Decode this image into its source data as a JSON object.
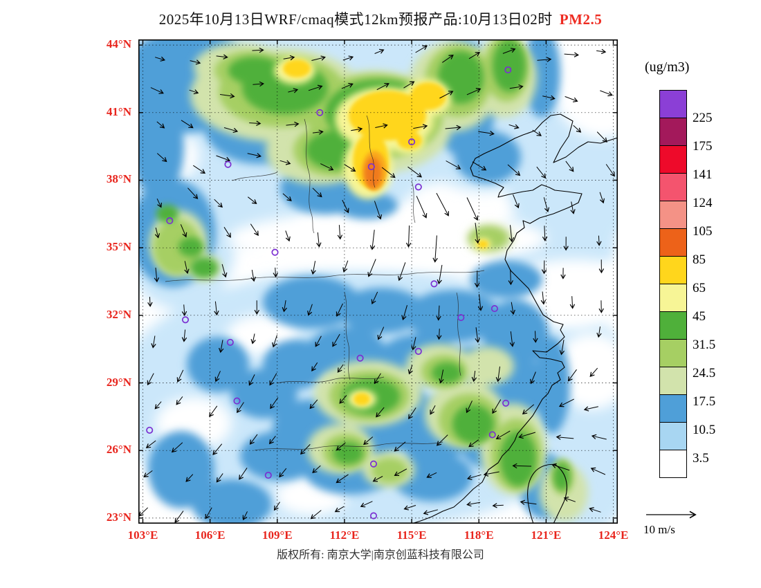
{
  "title": {
    "prefix": "2025年10月13日WRF/cmaq模式12km预报产品:10月13日02时",
    "pollutant": "PM2.5"
  },
  "axes": {
    "lat": [
      {
        "label": "44°N",
        "deg": 44
      },
      {
        "label": "41°N",
        "deg": 41
      },
      {
        "label": "38°N",
        "deg": 38
      },
      {
        "label": "35°N",
        "deg": 35
      },
      {
        "label": "32°N",
        "deg": 32
      },
      {
        "label": "29°N",
        "deg": 29
      },
      {
        "label": "26°N",
        "deg": 26
      },
      {
        "label": "23°N",
        "deg": 23
      }
    ],
    "lon": [
      {
        "label": "103°E",
        "deg": 103
      },
      {
        "label": "106°E",
        "deg": 106
      },
      {
        "label": "109°E",
        "deg": 109
      },
      {
        "label": "112°E",
        "deg": 112
      },
      {
        "label": "115°E",
        "deg": 115
      },
      {
        "label": "118°E",
        "deg": 118
      },
      {
        "label": "121°E",
        "deg": 121
      },
      {
        "label": "124°E",
        "deg": 124
      }
    ]
  },
  "legend": {
    "title": "(ug/m3)",
    "boundaries": [
      "225",
      "175",
      "141",
      "124",
      "105",
      "85",
      "65",
      "45",
      "31.5",
      "24.5",
      "17.5",
      "10.5",
      "3.5"
    ],
    "colors_top_to_bottom": [
      "#8B3FD6",
      "#A3195B",
      "#EE0A2A",
      "#F4546E",
      "#F49286",
      "#ED6219",
      "#FFD61C",
      "#F7F596",
      "#4FB03A",
      "#A6CF63",
      "#D2E3AC",
      "#4F9FD8",
      "#A8D6F2",
      "#FFFFFF"
    ]
  },
  "wind_legend": {
    "label": "10 m/s"
  },
  "footer": {
    "copyright": "版权所有: 南京大学|南京创蓝科技有限公司"
  },
  "markers": {
    "color": "#7B2FD1",
    "stations": [
      [
        119.3,
        42.9
      ],
      [
        110.9,
        41.0
      ],
      [
        115.0,
        39.7
      ],
      [
        113.2,
        38.6
      ],
      [
        106.8,
        38.7
      ],
      [
        115.3,
        37.7
      ],
      [
        104.2,
        36.2
      ],
      [
        108.9,
        34.8
      ],
      [
        116.0,
        33.4
      ],
      [
        118.7,
        32.3
      ],
      [
        117.2,
        31.9
      ],
      [
        104.9,
        31.8
      ],
      [
        106.9,
        30.8
      ],
      [
        112.7,
        30.1
      ],
      [
        115.3,
        30.4
      ],
      [
        103.3,
        26.9
      ],
      [
        107.2,
        28.2
      ],
      [
        119.2,
        28.1
      ],
      [
        118.6,
        26.7
      ],
      [
        113.3,
        25.4
      ],
      [
        108.6,
        24.9
      ],
      [
        113.3,
        23.1
      ]
    ]
  },
  "colors": {
    "axis_label": "#E8251D",
    "title_highlight": "#EE2B21"
  }
}
